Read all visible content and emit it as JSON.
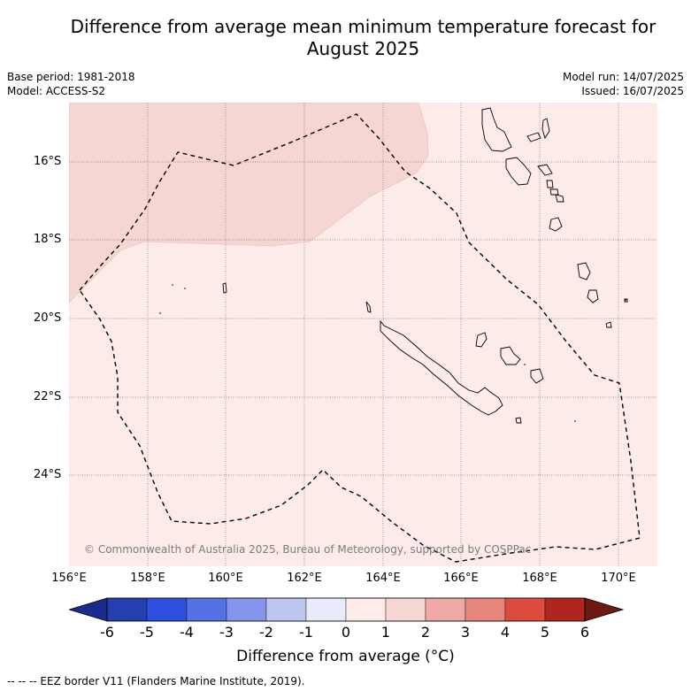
{
  "title_line1": "Difference from average mean minimum temperature forecast for",
  "title_line2": "August 2025",
  "base_period": "Base period: 1981-2018",
  "model": "Model: ACCESS-S2",
  "model_run": "Model run: 14/07/2025",
  "issued": "Issued: 16/07/2025",
  "lat_labels": [
    "16°S",
    "18°S",
    "20°S",
    "22°S",
    "24°S"
  ],
  "lon_labels": [
    "156°E",
    "158°E",
    "160°E",
    "162°E",
    "164°E",
    "166°E",
    "168°E",
    "170°E"
  ],
  "copyright": "© Commonwealth of Australia 2025, Bureau of Meteorology, supported by COSPPac",
  "colorbar": {
    "ticks": [
      "-6",
      "-5",
      "-4",
      "-3",
      "-2",
      "-1",
      "0",
      "1",
      "2",
      "3",
      "4",
      "5",
      "6"
    ],
    "colors": [
      "#1c2a8c",
      "#233fb0",
      "#2f4fe0",
      "#5571e6",
      "#8495eb",
      "#c0c6f2",
      "#e8ecfa",
      "#fcebe9",
      "#f7d5d2",
      "#efaaa5",
      "#e8847b",
      "#dd4b3e",
      "#b0261e",
      "#6d1a14"
    ],
    "label": "Difference from average (°C)"
  },
  "legend_text": "--  --  -- EEZ border V11 (Flanders Marine Institute, 2019).",
  "colors": {
    "anomaly_0_1": "#fcebe9",
    "anomaly_1_2": "#f6d6d3",
    "grid": "#7a7a7a"
  }
}
